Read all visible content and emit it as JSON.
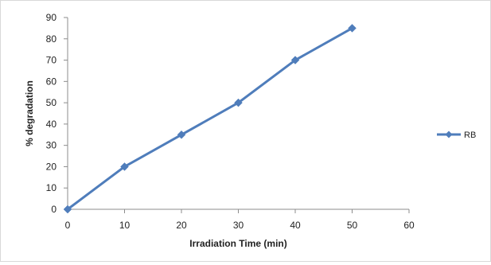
{
  "chart_data": {
    "type": "line",
    "title": "",
    "xlabel": "Irradiation Time (min)",
    "ylabel": "% degradation",
    "xlim": [
      0,
      60
    ],
    "ylim": [
      0,
      90
    ],
    "xticks": [
      0,
      10,
      20,
      30,
      40,
      50,
      60
    ],
    "yticks": [
      0,
      10,
      20,
      30,
      40,
      50,
      60,
      70,
      80,
      90
    ],
    "grid": false,
    "legend_position": "right",
    "series": [
      {
        "name": "RB",
        "color": "#4f7dbb",
        "marker": "diamond",
        "x": [
          0,
          10,
          20,
          30,
          40,
          50
        ],
        "y": [
          0,
          20,
          35,
          50,
          70,
          85
        ]
      }
    ]
  }
}
